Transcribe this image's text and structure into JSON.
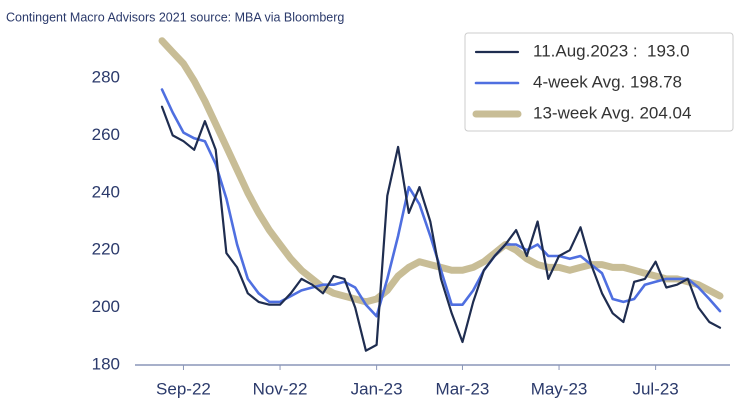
{
  "chart_data": {
    "type": "line",
    "title": "Contingent Macro Advisors 2021 source: MBA via Bloomberg",
    "categories": [
      null,
      null,
      "Sep-22",
      null,
      null,
      null,
      null,
      null,
      null,
      null,
      null,
      "Nov-22",
      null,
      null,
      null,
      null,
      null,
      null,
      null,
      null,
      "Jan-23",
      null,
      null,
      null,
      null,
      null,
      null,
      null,
      "Mar-23",
      null,
      null,
      null,
      null,
      null,
      null,
      null,
      null,
      "May-23",
      null,
      null,
      null,
      null,
      null,
      null,
      null,
      null,
      "Jul-23",
      null,
      null,
      null,
      null,
      null,
      null
    ],
    "series": [
      {
        "name": "11.Aug.2023 :  193.0",
        "color": "#1f2d50",
        "width": 2.2,
        "values": [
          270,
          260,
          258,
          255,
          265,
          255,
          219,
          214,
          205,
          202,
          201,
          201,
          205,
          210,
          208,
          205,
          211,
          210,
          200,
          185,
          187,
          239,
          256,
          233,
          242,
          230,
          210,
          198,
          188,
          202,
          213,
          218,
          222,
          227,
          218,
          230,
          210,
          218,
          220,
          228,
          215,
          205,
          198,
          195,
          209,
          210,
          216,
          207,
          208,
          210,
          200,
          195,
          193
        ]
      },
      {
        "name": "4-week Avg. 198.78",
        "color": "#4f6fe0",
        "width": 2.6,
        "values": [
          276,
          268,
          261,
          259,
          258,
          250,
          238,
          222,
          210,
          205,
          202,
          202,
          204,
          206,
          207,
          208,
          208,
          209,
          207,
          201,
          197,
          210,
          225,
          242,
          236,
          225,
          213,
          201,
          201,
          206,
          213,
          218,
          222,
          222,
          220,
          222,
          218,
          218,
          217,
          218,
          215,
          212,
          203,
          202,
          203,
          208,
          209,
          210,
          210,
          210,
          207,
          203,
          198.78
        ]
      },
      {
        "name": "13-week Avg. 204.04",
        "color": "#c8bd96",
        "width": 7,
        "values": [
          293,
          289,
          285,
          279,
          272,
          264,
          256,
          248,
          240,
          233,
          227,
          222,
          217,
          213,
          210,
          207,
          205,
          204,
          203,
          202,
          203,
          206,
          211,
          214,
          216,
          215,
          214,
          213,
          213,
          214,
          216,
          219,
          222,
          220,
          217,
          215,
          214,
          214,
          213,
          214,
          215,
          215,
          214,
          214,
          213,
          212,
          211,
          210,
          210,
          209,
          208,
          206,
          204.04
        ]
      }
    ],
    "ylim": [
      180,
      295
    ],
    "yticks": [
      180,
      200,
      220,
      240,
      260,
      280
    ],
    "grid": false,
    "legend": "top-right"
  }
}
